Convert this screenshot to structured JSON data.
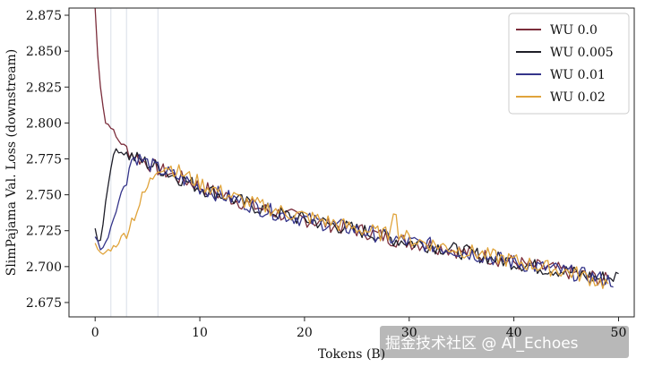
{
  "chart_data": {
    "type": "line",
    "xlabel": "Tokens (B)",
    "ylabel": "SlimPajama Val. Loss (downstream)",
    "xlim": [
      -2.5,
      51.5
    ],
    "ylim": [
      2.665,
      2.88
    ],
    "xticks": [
      "0",
      "10",
      "20",
      "30",
      "40",
      "50"
    ],
    "yticks": [
      "2.675",
      "2.700",
      "2.725",
      "2.750",
      "2.775",
      "2.800",
      "2.825",
      "2.850",
      "2.875"
    ],
    "legend_position": "top-right",
    "warmup_marker_x": [
      1.5,
      3.0,
      6.0
    ],
    "series": [
      {
        "name": "WU 0.0",
        "color": "#7b2d3b",
        "x": [
          0.0,
          0.3,
          0.6,
          1.0,
          1.5,
          2.0,
          3.0,
          4.0,
          5.0,
          6.0,
          7.0,
          8.0,
          10.0,
          12.0,
          14.0,
          16.0,
          18.0,
          20.0,
          22.0,
          24.0,
          26.0,
          28.0,
          30.0,
          32.0,
          34.0,
          36.0,
          38.0,
          40.0,
          42.0,
          44.0,
          46.0,
          48.0,
          49.0
        ],
        "y": [
          2.88,
          2.84,
          2.82,
          2.8,
          2.798,
          2.79,
          2.782,
          2.776,
          2.772,
          2.768,
          2.765,
          2.762,
          2.756,
          2.75,
          2.745,
          2.74,
          2.736,
          2.733,
          2.73,
          2.727,
          2.724,
          2.72,
          2.717,
          2.715,
          2.712,
          2.709,
          2.706,
          2.703,
          2.7,
          2.698,
          2.695,
          2.692,
          2.69
        ]
      },
      {
        "name": "WU 0.005",
        "color": "#1e1e28",
        "x": [
          0.0,
          0.3,
          0.6,
          1.0,
          1.5,
          2.0,
          2.5,
          3.0,
          4.0,
          5.0,
          6.0,
          7.0,
          8.0,
          10.0,
          12.0,
          14.0,
          16.0,
          18.0,
          20.0,
          22.0,
          24.0,
          26.0,
          28.0,
          30.0,
          32.0,
          34.0,
          36.0,
          38.0,
          40.0,
          42.0,
          44.0,
          46.0,
          48.0,
          50.0
        ],
        "y": [
          2.728,
          2.715,
          2.722,
          2.745,
          2.77,
          2.782,
          2.78,
          2.778,
          2.775,
          2.772,
          2.769,
          2.765,
          2.762,
          2.755,
          2.75,
          2.745,
          2.74,
          2.736,
          2.733,
          2.73,
          2.727,
          2.724,
          2.72,
          2.717,
          2.715,
          2.712,
          2.709,
          2.706,
          2.703,
          2.7,
          2.698,
          2.695,
          2.692,
          2.693
        ]
      },
      {
        "name": "WU 0.01",
        "color": "#34348a",
        "x": [
          0.0,
          0.3,
          0.6,
          1.0,
          1.5,
          2.0,
          3.0,
          3.5,
          4.0,
          5.0,
          6.0,
          7.0,
          8.0,
          10.0,
          12.0,
          14.0,
          16.0,
          18.0,
          20.0,
          22.0,
          24.0,
          26.0,
          28.0,
          30.0,
          32.0,
          34.0,
          36.0,
          38.0,
          40.0,
          42.0,
          44.0,
          46.0,
          48.0,
          49.5
        ],
        "y": [
          2.722,
          2.716,
          2.712,
          2.716,
          2.728,
          2.74,
          2.762,
          2.775,
          2.776,
          2.772,
          2.768,
          2.765,
          2.762,
          2.755,
          2.75,
          2.745,
          2.74,
          2.736,
          2.733,
          2.73,
          2.727,
          2.724,
          2.72,
          2.717,
          2.715,
          2.712,
          2.709,
          2.706,
          2.703,
          2.7,
          2.698,
          2.695,
          2.692,
          2.69
        ]
      },
      {
        "name": "WU 0.02",
        "color": "#e0a43c",
        "x": [
          0.0,
          0.3,
          0.6,
          1.0,
          2.0,
          3.0,
          4.0,
          5.0,
          6.0,
          7.0,
          8.0,
          10.0,
          12.0,
          14.0,
          16.0,
          18.0,
          20.0,
          22.0,
          24.0,
          26.0,
          28.0,
          28.5,
          29.0,
          30.0,
          32.0,
          34.0,
          36.0,
          38.0,
          40.0,
          42.0,
          44.0,
          46.0,
          48.0,
          49.0
        ],
        "y": [
          2.715,
          2.71,
          2.708,
          2.71,
          2.715,
          2.725,
          2.74,
          2.755,
          2.77,
          2.77,
          2.766,
          2.758,
          2.752,
          2.746,
          2.742,
          2.738,
          2.735,
          2.732,
          2.728,
          2.725,
          2.722,
          2.742,
          2.724,
          2.719,
          2.716,
          2.713,
          2.71,
          2.707,
          2.704,
          2.701,
          2.698,
          2.695,
          2.69,
          2.688
        ]
      }
    ]
  },
  "watermark": {
    "text": "掘金技术社区 @ AI_Echoes"
  }
}
